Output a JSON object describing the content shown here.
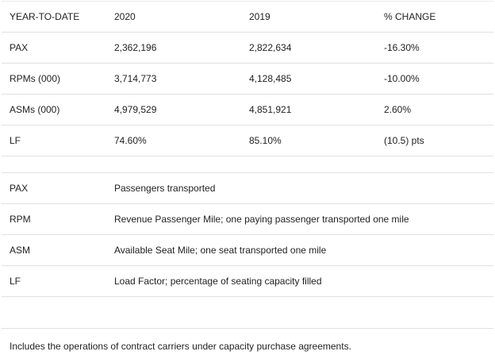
{
  "stats": {
    "headers": [
      "YEAR-TO-DATE",
      "2020",
      "2019",
      "% CHANGE"
    ],
    "rows": [
      [
        "PAX",
        "2,362,196",
        "2,822,634",
        "-16.30%"
      ],
      [
        "RPMs (000)",
        "3,714,773",
        "4,128,485",
        "-10.00%"
      ],
      [
        "ASMs (000)",
        "4,979,529",
        "4,851,921",
        "2.60%"
      ],
      [
        "LF",
        "74.60%",
        "85.10%",
        "(10.5) pts"
      ]
    ]
  },
  "glossary": [
    [
      "PAX",
      "Passengers transported"
    ],
    [
      "RPM",
      "Revenue Passenger Mile; one paying passenger transported one mile"
    ],
    [
      "ASM",
      "Available Seat Mile; one seat transported one mile"
    ],
    [
      "LF",
      "Load Factor; percentage of seating capacity filled"
    ]
  ],
  "footnote": "Includes the operations of contract carriers under capacity purchase agreements."
}
